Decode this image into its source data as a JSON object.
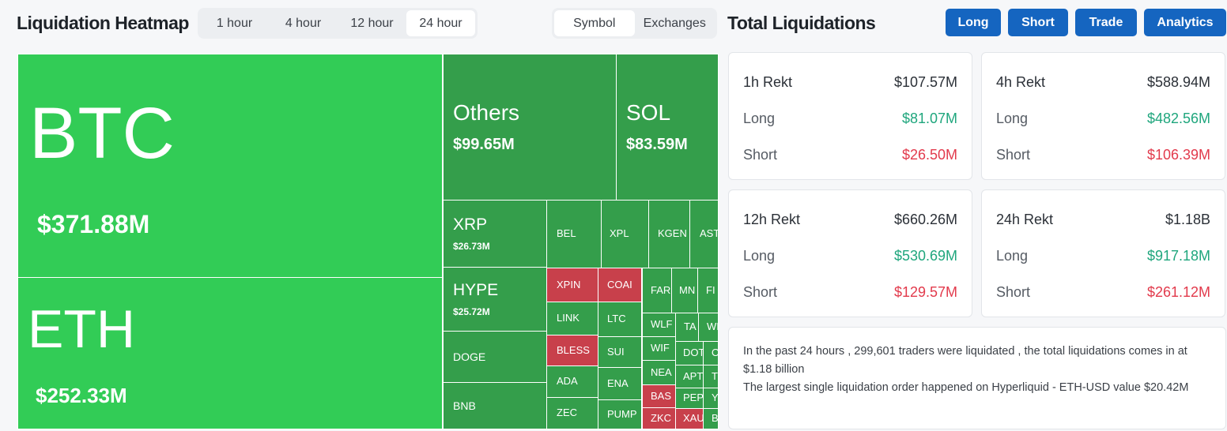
{
  "header": {
    "title": "Liquidation Heatmap",
    "time_tabs": [
      "1 hour",
      "4 hour",
      "12 hour",
      "24 hour"
    ],
    "view_tabs": [
      "Symbol",
      "Exchanges"
    ]
  },
  "treemap": {
    "tiles": [
      {
        "label": "BTC",
        "value": "$371.88M"
      },
      {
        "label": "ETH",
        "value": "$252.33M"
      },
      {
        "label": "Others",
        "value": "$99.65M"
      },
      {
        "label": "SOL",
        "value": "$83.59M"
      },
      {
        "label": "XRP",
        "value": "$26.73M"
      },
      {
        "label": "HYPE",
        "value": "$25.72M"
      },
      {
        "label": "DOGE"
      },
      {
        "label": "BNB"
      },
      {
        "label": "BEL"
      },
      {
        "label": "XPL"
      },
      {
        "label": "KGEN"
      },
      {
        "label": "AST"
      },
      {
        "label": "XPIN"
      },
      {
        "label": "COAI"
      },
      {
        "label": "LINK"
      },
      {
        "label": "LTC"
      },
      {
        "label": "BLESS"
      },
      {
        "label": "SUI"
      },
      {
        "label": "ADA"
      },
      {
        "label": "ENA"
      },
      {
        "label": "ZEC"
      },
      {
        "label": "PUMP"
      },
      {
        "label": "FAR"
      },
      {
        "label": "MN"
      },
      {
        "label": "FI"
      },
      {
        "label": "WLF"
      },
      {
        "label": "TA"
      },
      {
        "label": "WI"
      },
      {
        "label": "WIF"
      },
      {
        "label": "DOT"
      },
      {
        "label": "O"
      },
      {
        "label": "NEA"
      },
      {
        "label": "APT"
      },
      {
        "label": "T"
      },
      {
        "label": "BAS"
      },
      {
        "label": "PEP"
      },
      {
        "label": "Y"
      },
      {
        "label": "ZKC"
      },
      {
        "label": "XAU"
      },
      {
        "label": "B"
      }
    ]
  },
  "summary": {
    "title": "Total Liquidations",
    "buttons": [
      "Long",
      "Short",
      "Trade",
      "Analytics"
    ],
    "cards": [
      {
        "title": "1h Rekt",
        "total": "$107.57M",
        "rows": [
          {
            "label": "Long",
            "value": "$81.07M"
          },
          {
            "label": "Short",
            "value": "$26.50M"
          }
        ]
      },
      {
        "title": "4h Rekt",
        "total": "$588.94M",
        "rows": [
          {
            "label": "Long",
            "value": "$482.56M"
          },
          {
            "label": "Short",
            "value": "$106.39M"
          }
        ]
      },
      {
        "title": "12h Rekt",
        "total": "$660.26M",
        "rows": [
          {
            "label": "Long",
            "value": "$530.69M"
          },
          {
            "label": "Short",
            "value": "$129.57M"
          }
        ]
      },
      {
        "title": "24h Rekt",
        "total": "$1.18B",
        "rows": [
          {
            "label": "Long",
            "value": "$917.18M"
          },
          {
            "label": "Short",
            "value": "$261.12M"
          }
        ]
      }
    ],
    "note": [
      "In the past 24 hours , 299,601 traders were liquidated , the total liquidations comes in at $1.18 billion",
      "The largest single liquidation order happened on Hyperliquid - ETH-USD value $20.42M"
    ]
  }
}
